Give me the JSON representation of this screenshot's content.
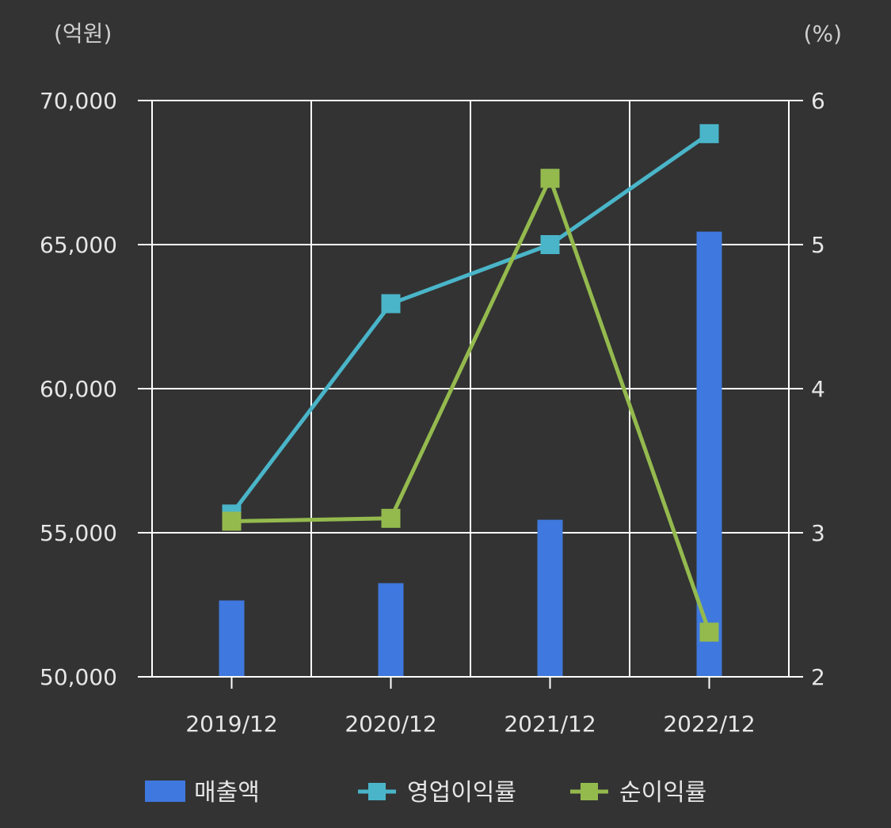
{
  "chart_data": {
    "type": "bar+line",
    "categories": [
      "2019/12",
      "2020/12",
      "2021/12",
      "2022/12"
    ],
    "left_unit": "(억원)",
    "right_unit": "(%)",
    "left_axis": {
      "min": 50000,
      "max": 70000,
      "ticks": [
        50000,
        55000,
        60000,
        65000,
        70000
      ],
      "tick_labels": [
        "50,000",
        "55,000",
        "60,000",
        "65,000",
        "70,000"
      ]
    },
    "right_axis": {
      "min": 2,
      "max": 6,
      "ticks": [
        2,
        3,
        4,
        5,
        6
      ],
      "tick_labels": [
        "2",
        "3",
        "4",
        "5",
        "6"
      ]
    },
    "grid": true,
    "legend_position": "bottom",
    "series": [
      {
        "name": "매출액",
        "kind": "bar",
        "axis": "left",
        "color": "#3f78de",
        "values": [
          52650,
          53250,
          55450,
          65450
        ]
      },
      {
        "name": "영업이익률",
        "kind": "line",
        "axis": "right",
        "color": "#4ab5c9",
        "values": [
          3.13,
          4.59,
          5.0,
          5.77
        ]
      },
      {
        "name": "순이익률",
        "kind": "line",
        "axis": "right",
        "color": "#94ba4e",
        "values": [
          3.08,
          3.1,
          5.46,
          2.31
        ]
      }
    ]
  }
}
